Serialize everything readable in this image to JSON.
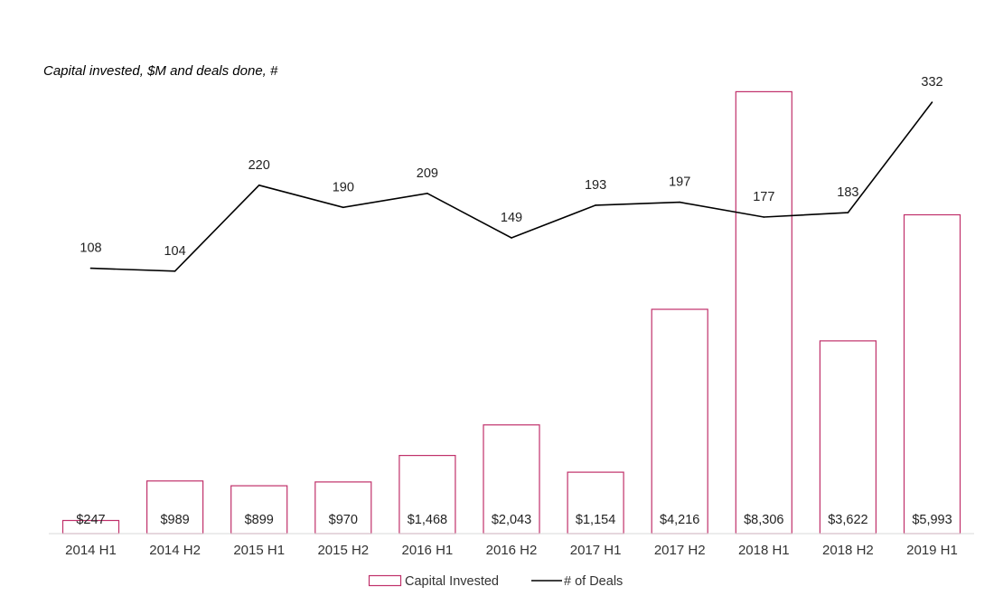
{
  "chart_data": {
    "type": "bar+line",
    "title": "Capital invested, $M and deals done, #",
    "categories": [
      "2014 H1",
      "2014 H2",
      "2015 H1",
      "2015 H2",
      "2016 H1",
      "2016 H2",
      "2017 H1",
      "2017 H2",
      "2018 H1",
      "2018 H2",
      "2019 H1"
    ],
    "series": [
      {
        "name": "Capital Invested",
        "kind": "bar",
        "axis": "primary",
        "color": "#c0306a",
        "values": [
          247,
          989,
          899,
          970,
          1468,
          2043,
          1154,
          4216,
          8306,
          3622,
          5993
        ],
        "labels": [
          "$247",
          "$989",
          "$899",
          "$970",
          "$1,468",
          "$2,043",
          "$1,154",
          "$4,216",
          "$8,306",
          "$3,622",
          "$5,993"
        ]
      },
      {
        "name": "# of Deals",
        "kind": "line",
        "axis": "secondary",
        "color": "#000000",
        "values": [
          108,
          104,
          220,
          190,
          209,
          149,
          193,
          197,
          177,
          183,
          332
        ],
        "labels": [
          "108",
          "104",
          "220",
          "190",
          "209",
          "149",
          "193",
          "197",
          "177",
          "183",
          "332"
        ]
      }
    ],
    "ylim": [
      0,
      8500
    ],
    "y2lim": [
      -250,
      360
    ],
    "grid": false,
    "legend": "bottom-center"
  }
}
